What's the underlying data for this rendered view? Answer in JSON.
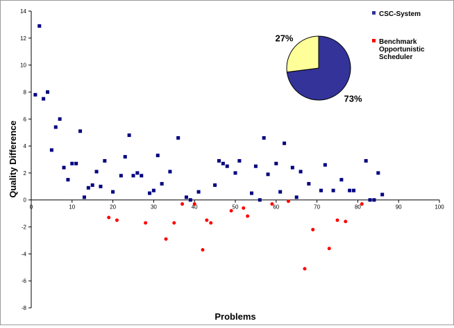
{
  "chart_data": {
    "type": "scatter",
    "title": "",
    "xlabel": "Problems",
    "ylabel": "Quality Difference",
    "xlim": [
      0,
      100
    ],
    "ylim": [
      -8,
      14
    ],
    "x_ticks": [
      0,
      10,
      20,
      30,
      40,
      50,
      60,
      70,
      80,
      90,
      100
    ],
    "y_ticks": [
      -8,
      -6,
      -4,
      -2,
      0,
      2,
      4,
      6,
      8,
      10,
      12,
      14
    ],
    "grid": false,
    "legend_position": "top-right",
    "series": [
      {
        "name": "CSC-System",
        "color": "#000080",
        "marker": "square",
        "points": [
          [
            1,
            7.8
          ],
          [
            2,
            12.9
          ],
          [
            3,
            7.5
          ],
          [
            4,
            8.0
          ],
          [
            5,
            3.7
          ],
          [
            6,
            5.4
          ],
          [
            7,
            6.0
          ],
          [
            8,
            2.4
          ],
          [
            9,
            1.5
          ],
          [
            10,
            2.7
          ],
          [
            11,
            2.7
          ],
          [
            12,
            5.1
          ],
          [
            13,
            0.2
          ],
          [
            14,
            0.9
          ],
          [
            15,
            1.1
          ],
          [
            16,
            2.1
          ],
          [
            17,
            1.0
          ],
          [
            18,
            2.9
          ],
          [
            20,
            0.6
          ],
          [
            22,
            1.8
          ],
          [
            23,
            3.2
          ],
          [
            24,
            4.8
          ],
          [
            25,
            1.8
          ],
          [
            26,
            2.0
          ],
          [
            27,
            1.8
          ],
          [
            29,
            0.5
          ],
          [
            30,
            0.7
          ],
          [
            31,
            3.3
          ],
          [
            32,
            1.2
          ],
          [
            34,
            2.1
          ],
          [
            36,
            4.6
          ],
          [
            38,
            0.2
          ],
          [
            39,
            0.0
          ],
          [
            41,
            0.6
          ],
          [
            45,
            1.1
          ],
          [
            46,
            2.9
          ],
          [
            47,
            2.7
          ],
          [
            48,
            2.5
          ],
          [
            50,
            2.0
          ],
          [
            51,
            2.9
          ],
          [
            54,
            0.5
          ],
          [
            55,
            2.5
          ],
          [
            56,
            0.0
          ],
          [
            57,
            4.6
          ],
          [
            58,
            1.9
          ],
          [
            60,
            2.7
          ],
          [
            61,
            0.6
          ],
          [
            62,
            4.2
          ],
          [
            64,
            2.4
          ],
          [
            65,
            0.2
          ],
          [
            66,
            2.1
          ],
          [
            68,
            1.2
          ],
          [
            71,
            0.7
          ],
          [
            72,
            2.6
          ],
          [
            74,
            0.7
          ],
          [
            76,
            1.5
          ],
          [
            78,
            0.7
          ],
          [
            79,
            0.7
          ],
          [
            82,
            2.9
          ],
          [
            83,
            0.0
          ],
          [
            84,
            0.0
          ],
          [
            85,
            2.0
          ],
          [
            86,
            0.4
          ]
        ]
      },
      {
        "name": "Benchmark Opportunistic Scheduler",
        "color": "#ff0000",
        "marker": "circle",
        "points": [
          [
            19,
            -1.3
          ],
          [
            21,
            -1.5
          ],
          [
            28,
            -1.7
          ],
          [
            33,
            -2.9
          ],
          [
            35,
            -1.7
          ],
          [
            37,
            -0.3
          ],
          [
            40,
            -0.3
          ],
          [
            42,
            -3.7
          ],
          [
            43,
            -1.5
          ],
          [
            44,
            -1.7
          ],
          [
            49,
            -0.8
          ],
          [
            52,
            -0.6
          ],
          [
            53,
            -1.2
          ],
          [
            59,
            -0.3
          ],
          [
            63,
            -0.1
          ],
          [
            67,
            -5.1
          ],
          [
            69,
            -2.2
          ],
          [
            73,
            -3.6
          ],
          [
            75,
            -1.5
          ],
          [
            77,
            -1.6
          ],
          [
            81,
            -0.3
          ]
        ]
      }
    ],
    "inset_pie": {
      "type": "pie",
      "slices": [
        {
          "series": "CSC-System",
          "value": 73,
          "label": "73%",
          "color": "#333399"
        },
        {
          "series": "Benchmark Opportunistic Scheduler",
          "value": 27,
          "label": "27%",
          "color": "#ffff99"
        }
      ]
    },
    "legend": [
      {
        "label": "CSC-System",
        "marker": "square",
        "color": "#333399"
      },
      {
        "label": "Benchmark Opportunistic Scheduler",
        "lines": [
          "Benchmark",
          "Opportunistic",
          "Scheduler"
        ],
        "marker": "square",
        "color": "#ff0000"
      }
    ]
  }
}
